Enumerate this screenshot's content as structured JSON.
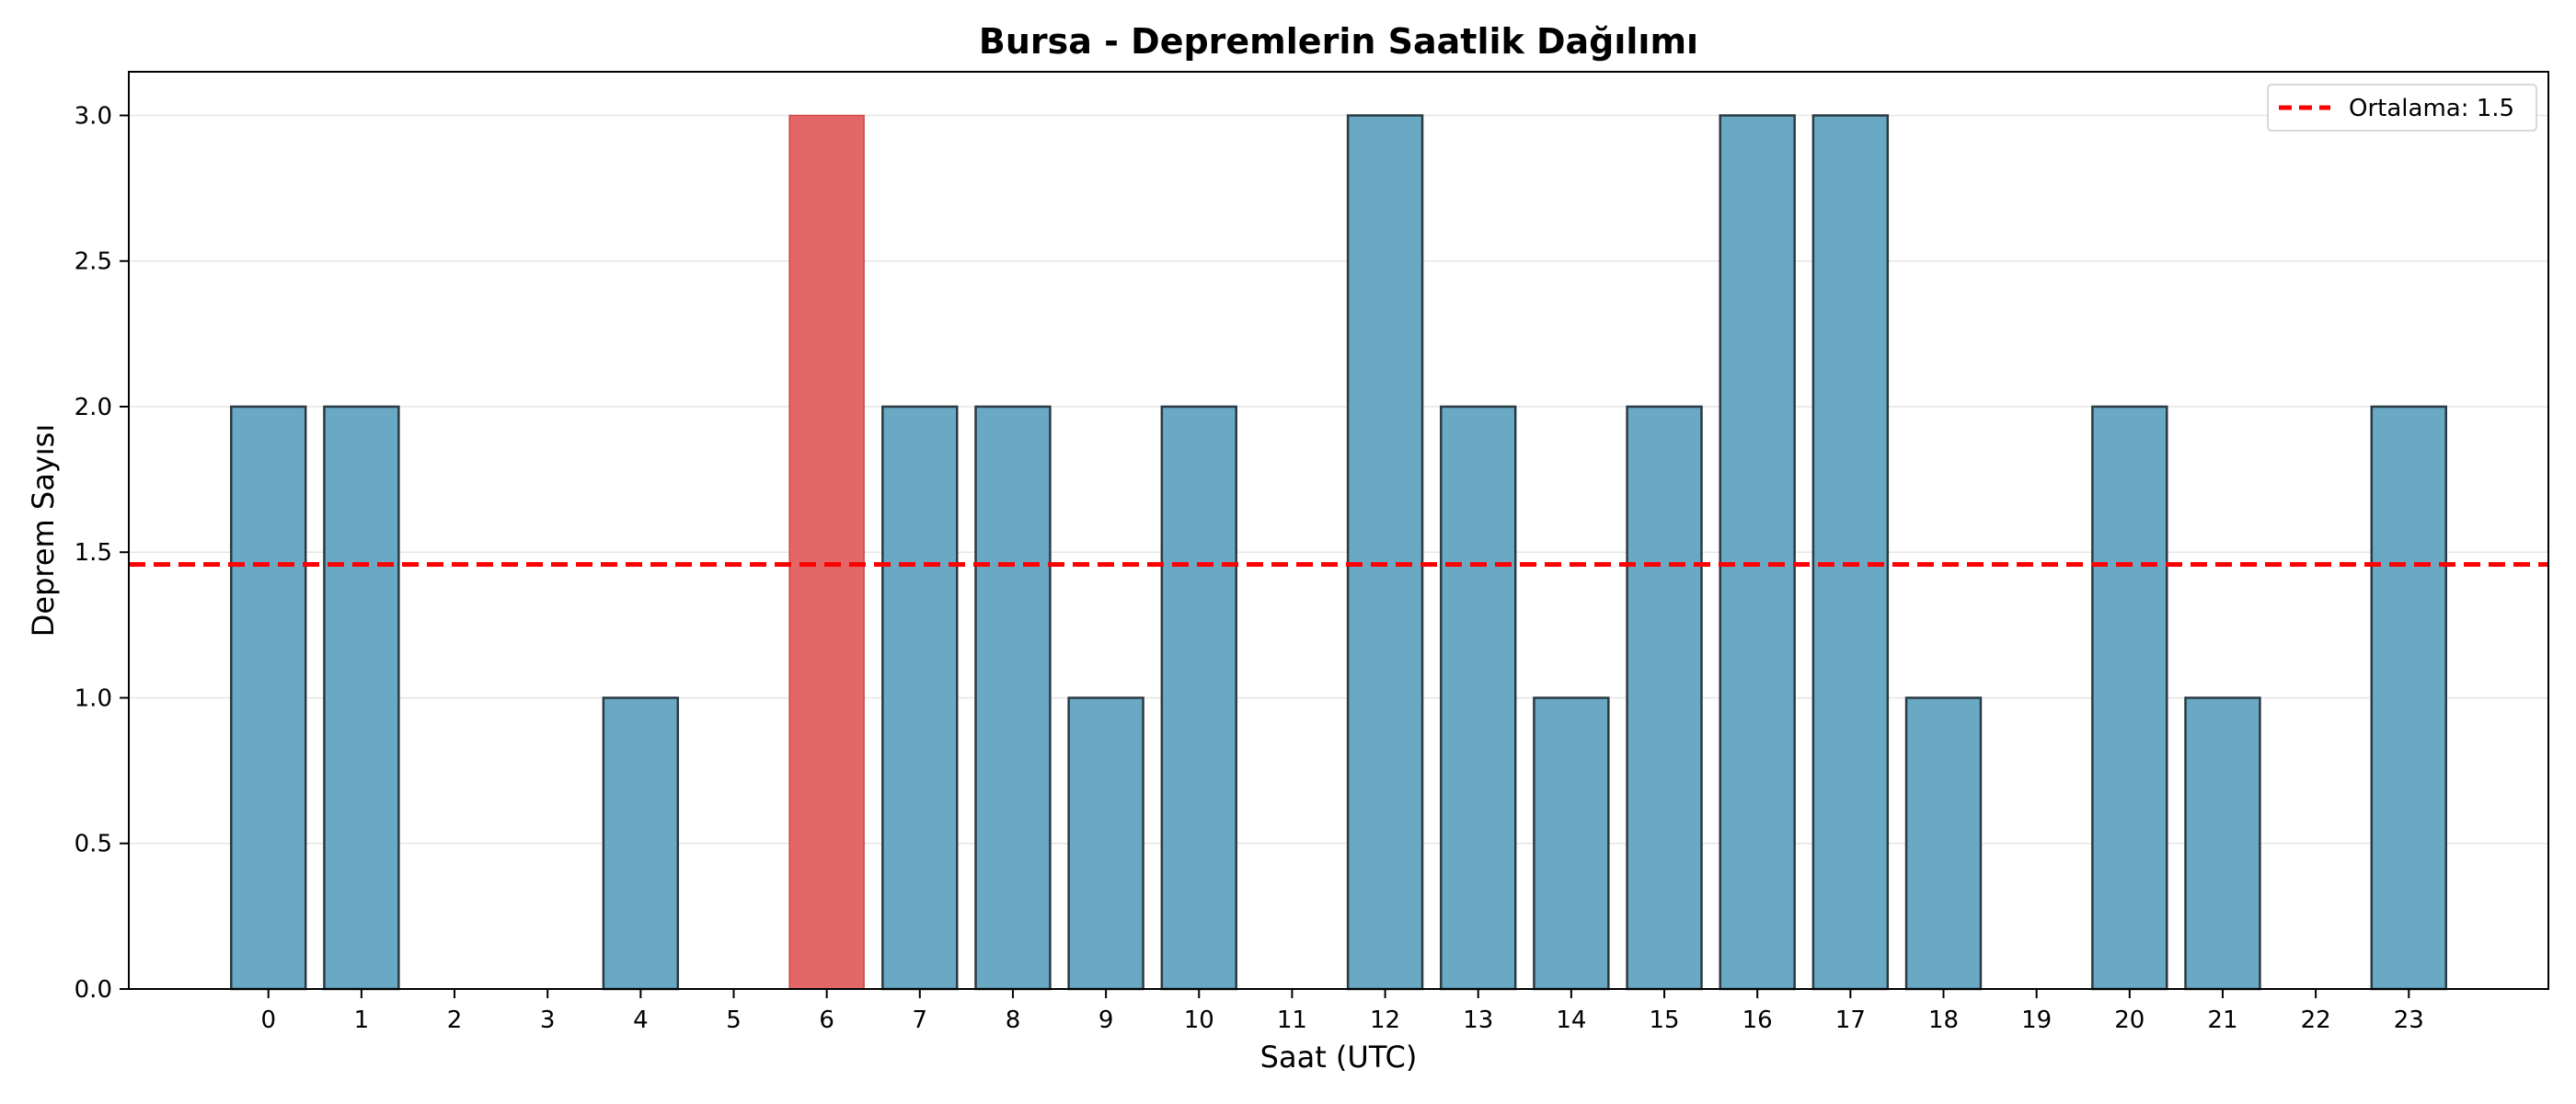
{
  "chart_data": {
    "type": "bar",
    "title": "Bursa - Depremlerin Saatlik Dağılımı",
    "xlabel": "Saat (UTC)",
    "ylabel": "Deprem Sayısı",
    "categories": [
      "0",
      "1",
      "2",
      "3",
      "4",
      "5",
      "6",
      "7",
      "8",
      "9",
      "10",
      "11",
      "12",
      "13",
      "14",
      "15",
      "16",
      "17",
      "18",
      "19",
      "20",
      "21",
      "22",
      "23"
    ],
    "values": [
      2,
      2,
      0,
      0,
      1,
      0,
      3,
      2,
      2,
      1,
      2,
      0,
      3,
      2,
      1,
      2,
      3,
      3,
      1,
      0,
      2,
      1,
      0,
      2
    ],
    "highlight_index": 6,
    "ylim": [
      0,
      3.15
    ],
    "yticks": [
      "0.0",
      "0.5",
      "1.0",
      "1.5",
      "2.0",
      "2.5",
      "3.0"
    ],
    "mean_line": {
      "value": 1.458,
      "label": "Ortalama: 1.5",
      "color": "#ff0000"
    },
    "colors": {
      "bar": "#6aa9c4",
      "highlight": "#e36767",
      "edge": "#2b3a42",
      "grid": "#e6e6e6"
    },
    "grid": "y",
    "legend_position": "top-right"
  }
}
